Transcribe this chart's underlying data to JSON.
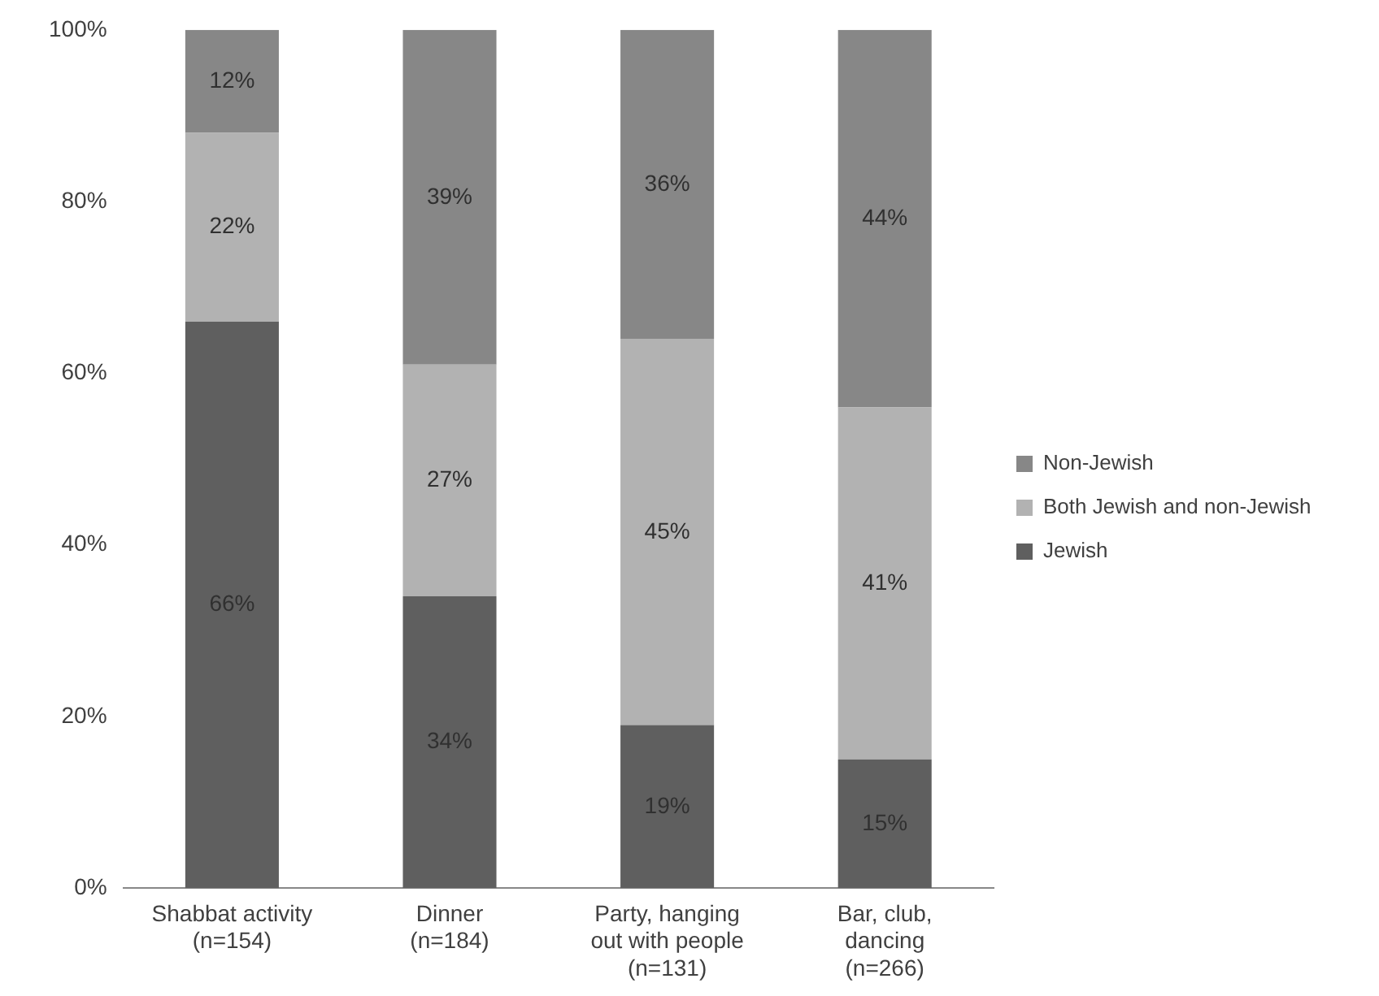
{
  "chart_data": {
    "type": "bar",
    "stacked": true,
    "categories": [
      "Shabbat activity (n=154)",
      "Dinner (n=184)",
      "Party, hanging out with people (n=131)",
      "Bar, club, dancing (n=266)"
    ],
    "series": [
      {
        "name": "Jewish",
        "color": "#5f5f5f",
        "values": [
          66,
          34,
          19,
          15
        ]
      },
      {
        "name": "Both Jewish and non-Jewish",
        "color": "#b2b2b2",
        "values": [
          22,
          27,
          45,
          41
        ]
      },
      {
        "name": "Non-Jewish",
        "color": "#878787",
        "values": [
          12,
          39,
          36,
          44
        ]
      }
    ],
    "value_labels": [
      [
        "66%",
        "34%",
        "19%",
        "15%"
      ],
      [
        "22%",
        "27%",
        "45%",
        "41%"
      ],
      [
        "12%",
        "39%",
        "36%",
        "44%"
      ]
    ],
    "ylim": [
      0,
      100
    ],
    "yticks": [
      {
        "value": 0,
        "label": "0%"
      },
      {
        "value": 20,
        "label": "20%"
      },
      {
        "value": 40,
        "label": "40%"
      },
      {
        "value": 60,
        "label": "60%"
      },
      {
        "value": 80,
        "label": "80%"
      },
      {
        "value": 100,
        "label": "100%"
      }
    ],
    "grid": false,
    "legend": "right"
  }
}
